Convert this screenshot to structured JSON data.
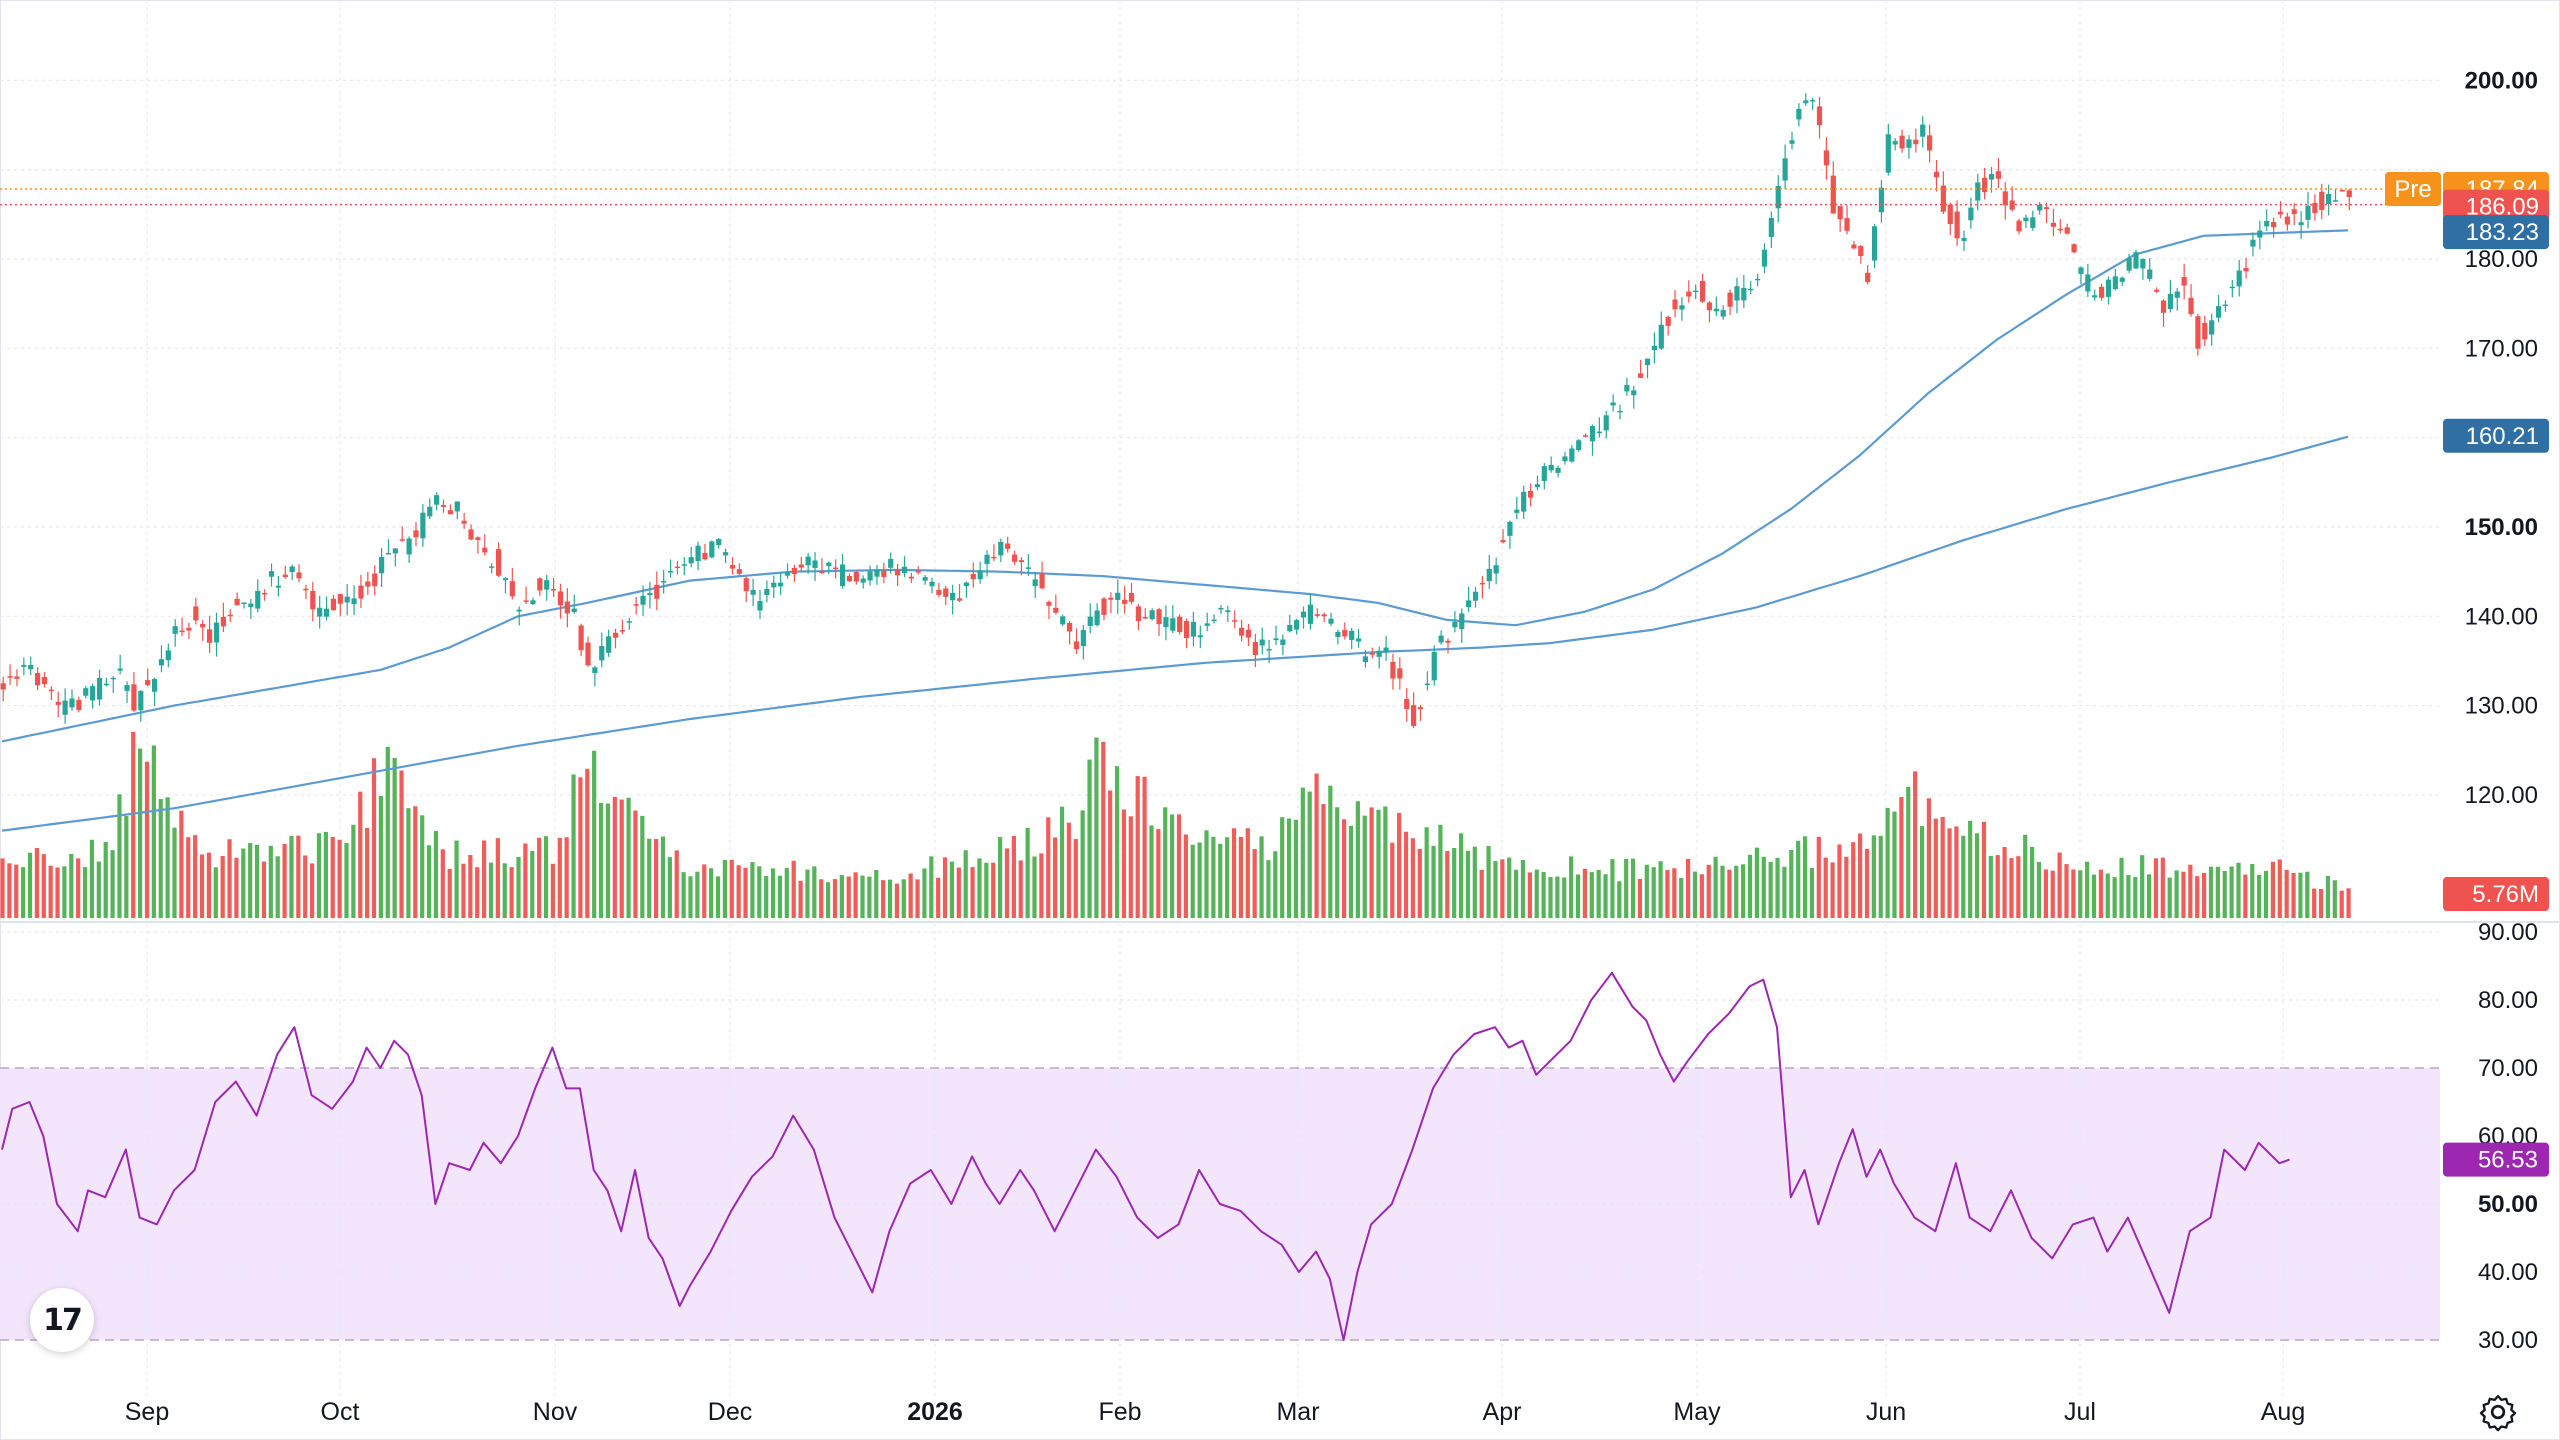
{
  "chart_data": {
    "type": "candlestick",
    "x_axis": {
      "ticks": [
        {
          "label": "Sep",
          "bold": false
        },
        {
          "label": "Oct",
          "bold": false
        },
        {
          "label": "Nov",
          "bold": false
        },
        {
          "label": "Dec",
          "bold": false
        },
        {
          "label": "2026",
          "bold": true
        },
        {
          "label": "Feb",
          "bold": false
        },
        {
          "label": "Mar",
          "bold": false
        },
        {
          "label": "Apr",
          "bold": false
        },
        {
          "label": "May",
          "bold": false
        },
        {
          "label": "Jun",
          "bold": false
        },
        {
          "label": "Jul",
          "bold": false
        },
        {
          "label": "Aug",
          "bold": false
        }
      ]
    },
    "price_pane": {
      "y_range": [
        106,
        209
      ],
      "ticks": [
        {
          "label": "200.00",
          "value": 200,
          "bold": true
        },
        {
          "label": "180.00",
          "value": 180,
          "bold": false
        },
        {
          "label": "170.00",
          "value": 170,
          "bold": false
        },
        {
          "label": "150.00",
          "value": 150,
          "bold": true
        },
        {
          "label": "140.00",
          "value": 140,
          "bold": false
        },
        {
          "label": "130.00",
          "value": 130,
          "bold": false
        },
        {
          "label": "120.00",
          "value": 120,
          "bold": false
        }
      ],
      "up_color": "#26a69a",
      "down_color": "#ef5350",
      "candle_anchors": [
        [
          0,
          132.5
        ],
        [
          8,
          134.5
        ],
        [
          14,
          131
        ],
        [
          18,
          129.5
        ],
        [
          24,
          131
        ],
        [
          34,
          134
        ],
        [
          38,
          130
        ],
        [
          44,
          133
        ],
        [
          50,
          138
        ],
        [
          56,
          140
        ],
        [
          60,
          137
        ],
        [
          66,
          141
        ],
        [
          72,
          141.5
        ],
        [
          78,
          144
        ],
        [
          84,
          145
        ],
        [
          88,
          143
        ],
        [
          92,
          140
        ],
        [
          100,
          142
        ],
        [
          106,
          143
        ],
        [
          112,
          147
        ],
        [
          118,
          148
        ],
        [
          126,
          153
        ],
        [
          132,
          152
        ],
        [
          138,
          148.5
        ],
        [
          145,
          145
        ],
        [
          150,
          141
        ],
        [
          158,
          144
        ],
        [
          166,
          140
        ],
        [
          170,
          134
        ],
        [
          178,
          138
        ],
        [
          184,
          141
        ],
        [
          196,
          145
        ],
        [
          202,
          147
        ],
        [
          210,
          148
        ],
        [
          216,
          143
        ],
        [
          220,
          141
        ],
        [
          228,
          145
        ],
        [
          234,
          146
        ],
        [
          240,
          145
        ],
        [
          248,
          144.5
        ],
        [
          256,
          145.5
        ],
        [
          264,
          145
        ],
        [
          270,
          144
        ],
        [
          276,
          142
        ],
        [
          284,
          145
        ],
        [
          290,
          148
        ],
        [
          296,
          146
        ],
        [
          300,
          144
        ],
        [
          306,
          140
        ],
        [
          312,
          137
        ],
        [
          318,
          140
        ],
        [
          324,
          143
        ],
        [
          330,
          140
        ],
        [
          338,
          140
        ],
        [
          344,
          138
        ],
        [
          350,
          139
        ],
        [
          356,
          141
        ],
        [
          362,
          137
        ],
        [
          368,
          136
        ],
        [
          374,
          138
        ],
        [
          380,
          141
        ],
        [
          386,
          139
        ],
        [
          392,
          138
        ],
        [
          396,
          135
        ],
        [
          402,
          136
        ],
        [
          406,
          132
        ],
        [
          410,
          128
        ],
        [
          414,
          133
        ],
        [
          418,
          137
        ],
        [
          422,
          139
        ],
        [
          428,
          142
        ],
        [
          434,
          146
        ],
        [
          440,
          152
        ],
        [
          448,
          156
        ],
        [
          454,
          158
        ],
        [
          458,
          160
        ],
        [
          466,
          162
        ],
        [
          474,
          166
        ],
        [
          480,
          170
        ],
        [
          486,
          175
        ],
        [
          492,
          177
        ],
        [
          498,
          174
        ],
        [
          504,
          176
        ],
        [
          510,
          177
        ],
        [
          514,
          184
        ],
        [
          520,
          194
        ],
        [
          524,
          198
        ],
        [
          528,
          196
        ],
        [
          532,
          186
        ],
        [
          538,
          182
        ],
        [
          542,
          178
        ],
        [
          548,
          193
        ],
        [
          554,
          193
        ],
        [
          558,
          194
        ],
        [
          564,
          186
        ],
        [
          570,
          182
        ],
        [
          574,
          188
        ],
        [
          580,
          189
        ],
        [
          586,
          183
        ],
        [
          592,
          186
        ],
        [
          598,
          184
        ],
        [
          604,
          178
        ],
        [
          610,
          176
        ],
        [
          616,
          179
        ],
        [
          622,
          180
        ],
        [
          628,
          174
        ],
        [
          634,
          178
        ],
        [
          638,
          171
        ],
        [
          644,
          174
        ],
        [
          650,
          178
        ],
        [
          656,
          183
        ],
        [
          662,
          185
        ],
        [
          668,
          184
        ],
        [
          672,
          186
        ],
        [
          678,
          187
        ],
        [
          683,
          186.5
        ]
      ],
      "ma50": [
        [
          0,
          126
        ],
        [
          25,
          128
        ],
        [
          50,
          130
        ],
        [
          80,
          132
        ],
        [
          110,
          134
        ],
        [
          130,
          136.5
        ],
        [
          150,
          140
        ],
        [
          170,
          141.5
        ],
        [
          200,
          144
        ],
        [
          230,
          145
        ],
        [
          260,
          145.2
        ],
        [
          290,
          145
        ],
        [
          320,
          144.5
        ],
        [
          350,
          143.5
        ],
        [
          380,
          142.5
        ],
        [
          400,
          141.5
        ],
        [
          420,
          139.6
        ],
        [
          440,
          139
        ],
        [
          460,
          140.5
        ],
        [
          480,
          143
        ],
        [
          500,
          147
        ],
        [
          520,
          152
        ],
        [
          540,
          158
        ],
        [
          560,
          165
        ],
        [
          580,
          171
        ],
        [
          600,
          176
        ],
        [
          620,
          180.5
        ],
        [
          640,
          182.6
        ],
        [
          660,
          182.9
        ],
        [
          683,
          183.23
        ]
      ],
      "ma200": [
        [
          0,
          116
        ],
        [
          50,
          118.5
        ],
        [
          100,
          122
        ],
        [
          150,
          125.5
        ],
        [
          200,
          128.5
        ],
        [
          250,
          131
        ],
        [
          300,
          133
        ],
        [
          350,
          134.8
        ],
        [
          400,
          136
        ],
        [
          430,
          136.5
        ],
        [
          450,
          137
        ],
        [
          480,
          138.5
        ],
        [
          510,
          141
        ],
        [
          540,
          144.5
        ],
        [
          570,
          148.5
        ],
        [
          600,
          152
        ],
        [
          630,
          155
        ],
        [
          660,
          157.8
        ],
        [
          683,
          160.21
        ]
      ],
      "labels": [
        {
          "value": 187.84,
          "label": "187.84",
          "tag": "Pre",
          "color": "#f7931a"
        },
        {
          "value": 186.09,
          "label": "186.09",
          "color": "#ef5350"
        },
        {
          "value": 183.23,
          "label": "183.23",
          "color": "#2f6fa3"
        },
        {
          "value": 160.21,
          "label": "160.21",
          "color": "#2f6fa3"
        }
      ]
    },
    "volume": {
      "last_label": "5.76M",
      "anchors": [
        [
          0,
          0.3
        ],
        [
          30,
          0.34
        ],
        [
          40,
          0.9
        ],
        [
          55,
          0.35
        ],
        [
          100,
          0.38
        ],
        [
          112,
          0.86
        ],
        [
          130,
          0.33
        ],
        [
          160,
          0.35
        ],
        [
          166,
          0.62
        ],
        [
          170,
          0.88
        ],
        [
          176,
          0.6
        ],
        [
          200,
          0.28
        ],
        [
          230,
          0.25
        ],
        [
          260,
          0.22
        ],
        [
          280,
          0.3
        ],
        [
          300,
          0.4
        ],
        [
          312,
          0.52
        ],
        [
          320,
          0.85
        ],
        [
          326,
          0.7
        ],
        [
          340,
          0.5
        ],
        [
          350,
          0.42
        ],
        [
          370,
          0.38
        ],
        [
          380,
          0.8
        ],
        [
          390,
          0.55
        ],
        [
          410,
          0.45
        ],
        [
          430,
          0.32
        ],
        [
          460,
          0.25
        ],
        [
          500,
          0.27
        ],
        [
          520,
          0.33
        ],
        [
          540,
          0.4
        ],
        [
          556,
          0.62
        ],
        [
          566,
          0.45
        ],
        [
          600,
          0.3
        ],
        [
          640,
          0.24
        ],
        [
          660,
          0.26
        ],
        [
          683,
          0.15
        ]
      ],
      "max": 1.0
    },
    "rsi": {
      "y_range": [
        28,
        92
      ],
      "ticks": [
        {
          "label": "90.00",
          "value": 90,
          "bold": false
        },
        {
          "label": "80.00",
          "value": 80,
          "bold": false
        },
        {
          "label": "70.00",
          "value": 70,
          "bold": false
        },
        {
          "label": "60.00",
          "value": 60,
          "bold": false
        },
        {
          "label": "50.00",
          "value": 50,
          "bold": true
        },
        {
          "label": "40.00",
          "value": 40,
          "bold": false
        },
        {
          "label": "30.00",
          "value": 30,
          "bold": false
        }
      ],
      "band": [
        30,
        70
      ],
      "color": "#9c27b0",
      "last_label": "56.53",
      "values": [
        [
          0,
          58
        ],
        [
          3,
          64
        ],
        [
          8,
          65
        ],
        [
          12,
          60
        ],
        [
          16,
          50
        ],
        [
          22,
          46
        ],
        [
          25,
          52
        ],
        [
          30,
          51
        ],
        [
          36,
          58
        ],
        [
          40,
          48
        ],
        [
          45,
          47
        ],
        [
          50,
          52
        ],
        [
          56,
          55
        ],
        [
          62,
          65
        ],
        [
          68,
          68
        ],
        [
          74,
          63
        ],
        [
          80,
          72
        ],
        [
          85,
          76
        ],
        [
          90,
          66
        ],
        [
          96,
          64
        ],
        [
          102,
          68
        ],
        [
          106,
          73
        ],
        [
          110,
          70
        ],
        [
          114,
          74
        ],
        [
          118,
          72
        ],
        [
          122,
          66
        ],
        [
          126,
          50
        ],
        [
          130,
          56
        ],
        [
          136,
          55
        ],
        [
          140,
          59
        ],
        [
          145,
          56
        ],
        [
          150,
          60
        ],
        [
          155,
          67
        ],
        [
          160,
          73
        ],
        [
          164,
          67
        ],
        [
          168,
          67
        ],
        [
          172,
          55
        ],
        [
          176,
          52
        ],
        [
          180,
          46
        ],
        [
          184,
          55
        ],
        [
          188,
          45
        ],
        [
          192,
          42
        ],
        [
          197,
          35
        ],
        [
          200,
          38
        ],
        [
          206,
          43
        ],
        [
          212,
          49
        ],
        [
          218,
          54
        ],
        [
          224,
          57
        ],
        [
          230,
          63
        ],
        [
          236,
          58
        ],
        [
          242,
          48
        ],
        [
          248,
          42
        ],
        [
          253,
          37
        ],
        [
          258,
          46
        ],
        [
          264,
          53
        ],
        [
          270,
          55
        ],
        [
          276,
          50
        ],
        [
          282,
          57
        ],
        [
          286,
          53
        ],
        [
          290,
          50
        ],
        [
          296,
          55
        ],
        [
          300,
          52
        ],
        [
          306,
          46
        ],
        [
          312,
          52
        ],
        [
          318,
          58
        ],
        [
          324,
          54
        ],
        [
          330,
          48
        ],
        [
          336,
          45
        ],
        [
          342,
          47
        ],
        [
          348,
          55
        ],
        [
          354,
          50
        ],
        [
          360,
          49
        ],
        [
          366,
          46
        ],
        [
          372,
          44
        ],
        [
          377,
          40
        ],
        [
          382,
          43
        ],
        [
          386,
          39
        ],
        [
          390,
          30
        ],
        [
          394,
          40
        ],
        [
          398,
          47
        ],
        [
          404,
          50
        ],
        [
          410,
          58
        ],
        [
          416,
          67
        ],
        [
          422,
          72
        ],
        [
          428,
          75
        ],
        [
          434,
          76
        ],
        [
          438,
          73
        ],
        [
          442,
          74
        ],
        [
          446,
          69
        ],
        [
          450,
          71
        ],
        [
          456,
          74
        ],
        [
          462,
          80
        ],
        [
          468,
          84
        ],
        [
          474,
          79
        ],
        [
          478,
          77
        ],
        [
          482,
          72
        ],
        [
          486,
          68
        ],
        [
          490,
          71
        ],
        [
          496,
          75
        ],
        [
          502,
          78
        ],
        [
          508,
          82
        ],
        [
          512,
          83
        ],
        [
          516,
          76
        ],
        [
          520,
          51
        ],
        [
          524,
          55
        ],
        [
          528,
          47
        ],
        [
          534,
          56
        ],
        [
          538,
          61
        ],
        [
          542,
          54
        ],
        [
          546,
          58
        ],
        [
          550,
          53
        ],
        [
          556,
          48
        ],
        [
          562,
          46
        ],
        [
          568,
          56
        ],
        [
          572,
          48
        ],
        [
          578,
          46
        ],
        [
          584,
          52
        ],
        [
          590,
          45
        ],
        [
          596,
          42
        ],
        [
          602,
          47
        ],
        [
          608,
          48
        ],
        [
          612,
          43
        ],
        [
          618,
          48
        ],
        [
          624,
          41
        ],
        [
          630,
          34
        ],
        [
          636,
          46
        ],
        [
          642,
          48
        ],
        [
          646,
          58
        ],
        [
          652,
          55
        ],
        [
          656,
          59
        ],
        [
          662,
          56
        ],
        [
          665,
          56.53
        ]
      ]
    }
  }
}
